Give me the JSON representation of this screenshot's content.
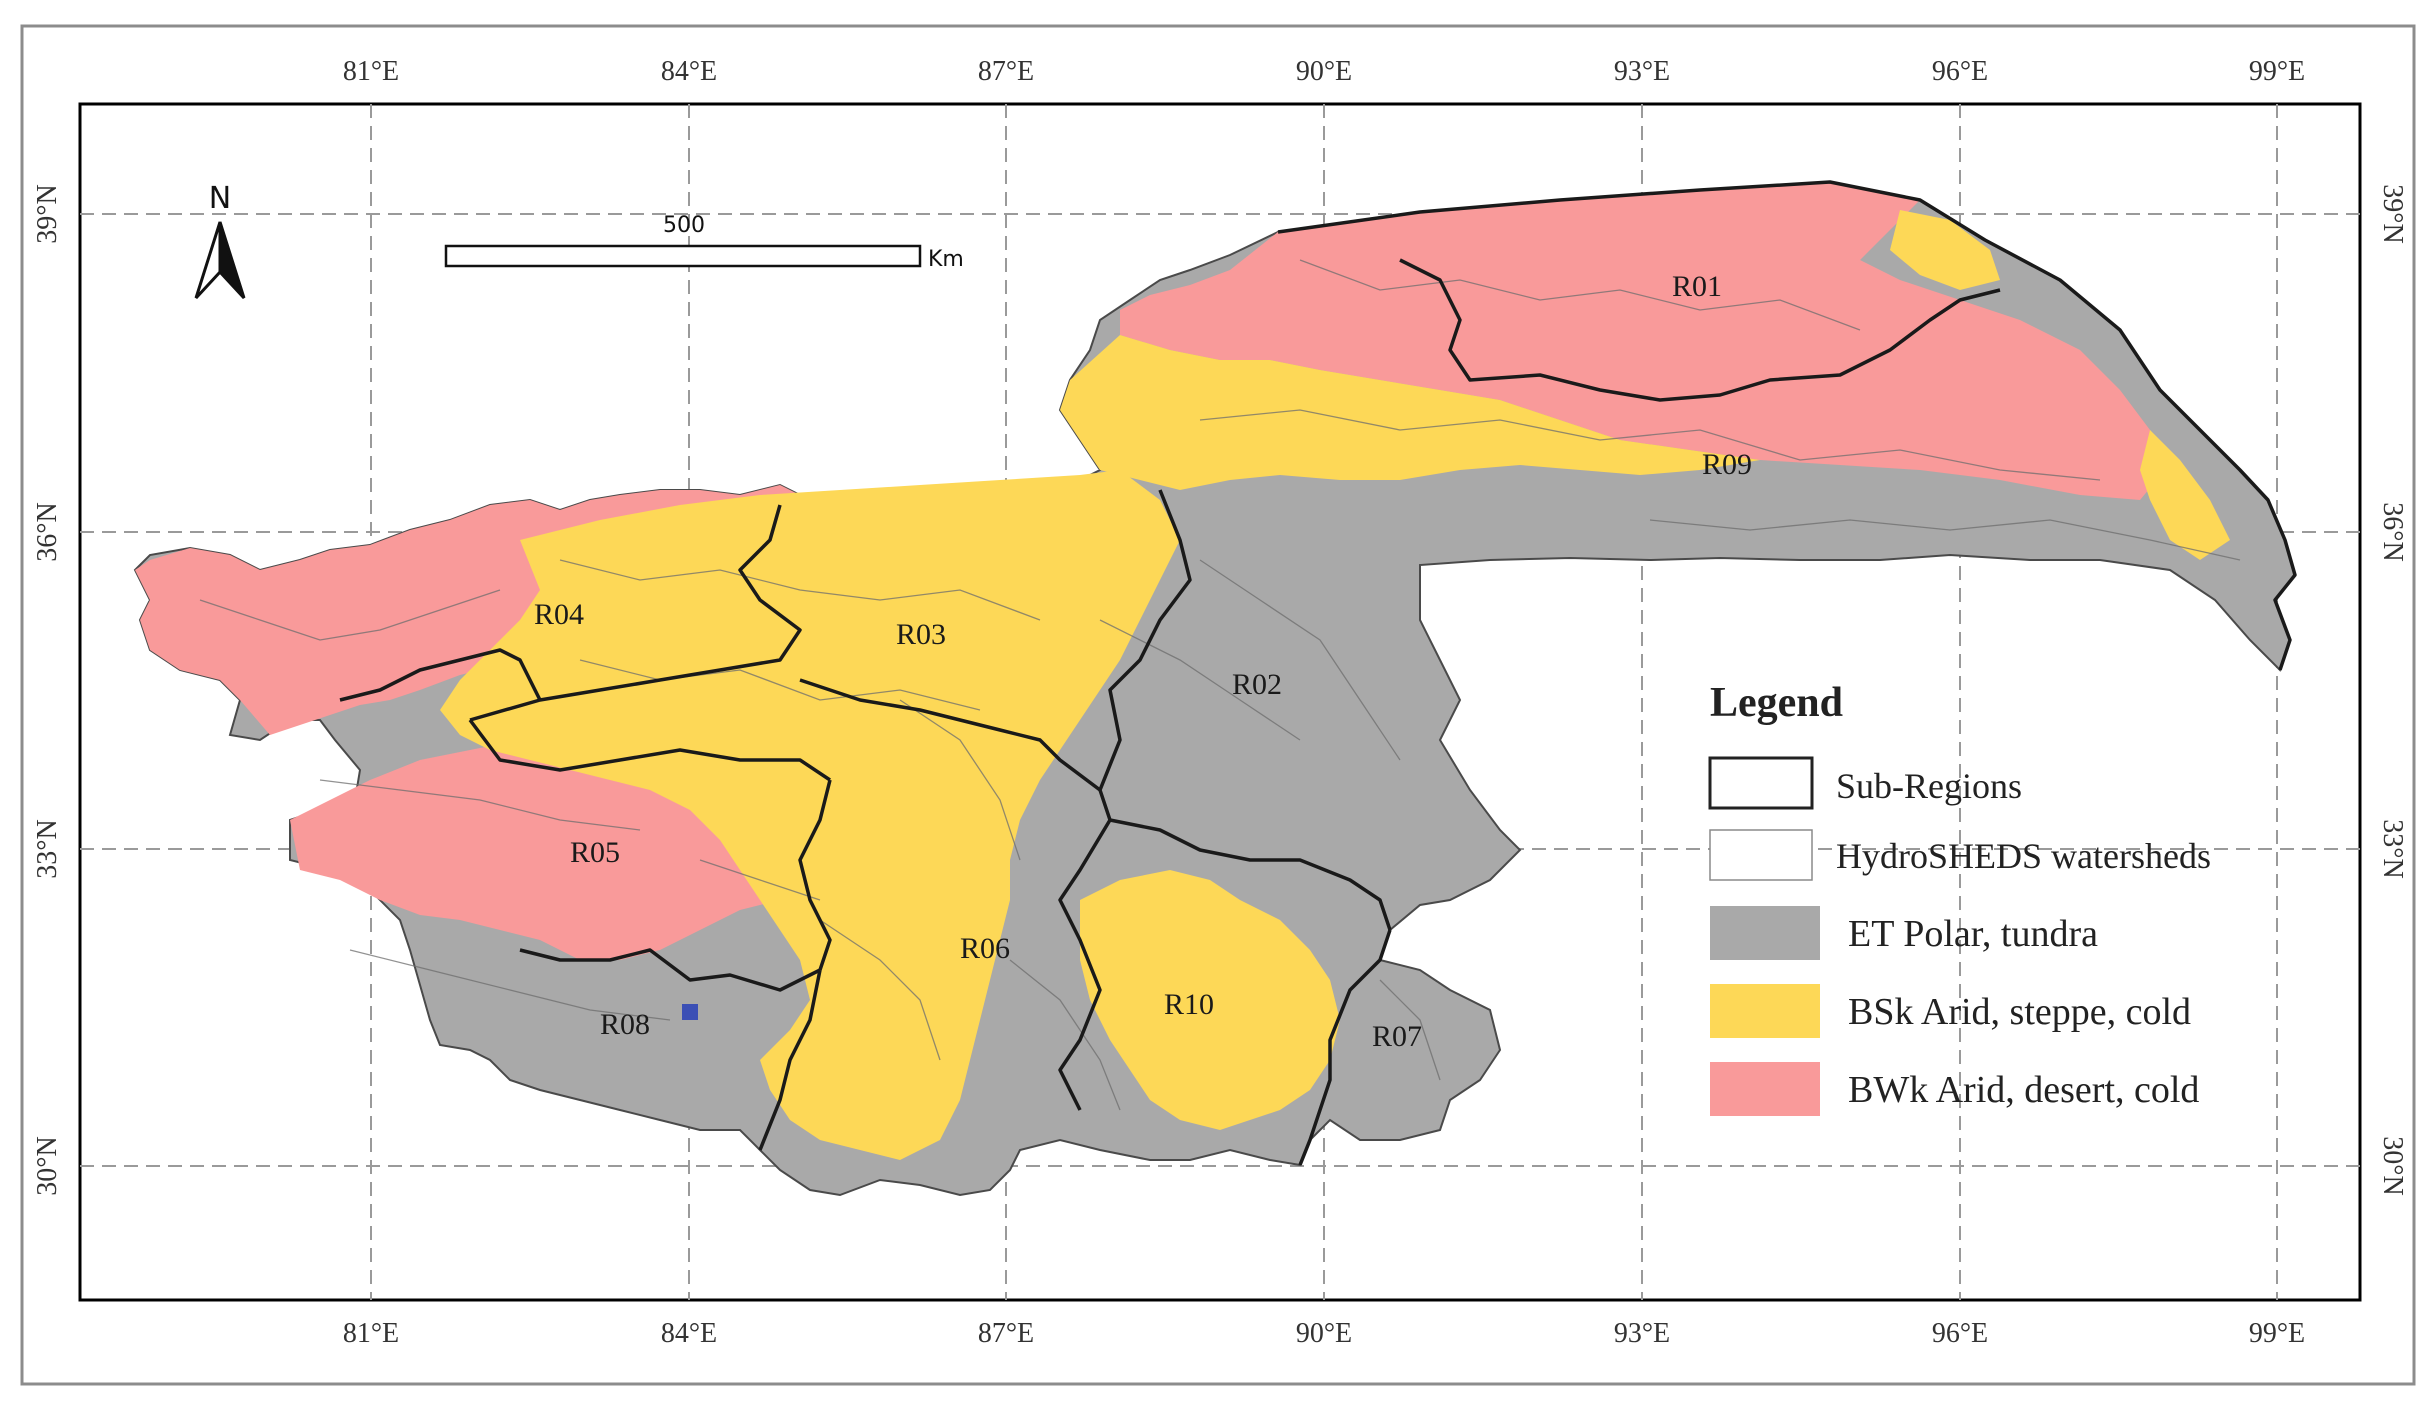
{
  "map": {
    "lon_labels": [
      "81°E",
      "84°E",
      "87°E",
      "90°E",
      "93°E",
      "96°E",
      "99°E"
    ],
    "lat_labels": [
      "39°N",
      "36°N",
      "33°N",
      "30°N"
    ],
    "north_arrow_label": "N",
    "scale_bar": {
      "value": "500",
      "unit": "Km"
    },
    "regions": [
      {
        "code": "R01"
      },
      {
        "code": "R02"
      },
      {
        "code": "R03"
      },
      {
        "code": "R04"
      },
      {
        "code": "R05"
      },
      {
        "code": "R06"
      },
      {
        "code": "R07"
      },
      {
        "code": "R08"
      },
      {
        "code": "R09"
      },
      {
        "code": "R10"
      }
    ],
    "colors": {
      "et_polar": "#a9a9a9",
      "bsk_steppe": "#fdd857",
      "bwk_desert": "#f99a9a",
      "boundary": "#1a1a1a",
      "watershed": "#6e6e6e",
      "grid": "#9a9a9a",
      "lake": "#3b4fb5"
    }
  },
  "legend": {
    "title": "Legend",
    "items": [
      {
        "label": "Sub-Regions",
        "kind": "thick-outline"
      },
      {
        "label": "HydroSHEDS watersheds",
        "kind": "thin-outline"
      },
      {
        "label": "ET Polar, tundra",
        "kind": "fill",
        "color": "#a9a9a9"
      },
      {
        "label": "BSk Arid, steppe, cold",
        "kind": "fill",
        "color": "#fdd857"
      },
      {
        "label": "BWk Arid, desert, cold",
        "kind": "fill",
        "color": "#f99a9a"
      }
    ]
  }
}
